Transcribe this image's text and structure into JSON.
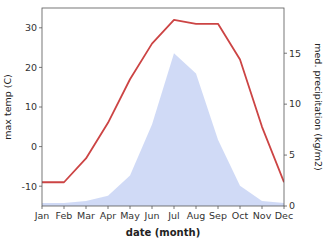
{
  "chart_data": {
    "type": "line",
    "xlabel": "date (month)",
    "ylabel": "max temp (C)",
    "y2label": "med. precipitation (kg/m2)",
    "categories": [
      "Jan",
      "Feb",
      "Mar",
      "Apr",
      "May",
      "Jun",
      "Jul",
      "Aug",
      "Sep",
      "Oct",
      "Nov",
      "Dec"
    ],
    "series": [
      {
        "type": "line",
        "color": "#cc4444",
        "values": [
          -9,
          -9,
          -3,
          6,
          17,
          26,
          32,
          31,
          31,
          22,
          5,
          -9
        ]
      },
      {
        "type": "area",
        "axis": "y2",
        "color": "#aabbee",
        "values": [
          0.3,
          0.3,
          0.5,
          1.0,
          3.0,
          8.0,
          15.0,
          13.0,
          6.5,
          2.0,
          0.5,
          0.3
        ]
      }
    ],
    "ylim": [
      -15,
      35
    ],
    "yticks": [
      -10,
      0,
      10,
      20,
      30
    ],
    "y2lim": [
      0,
      19.44
    ],
    "y2ticks": [
      0,
      5,
      10,
      15
    ],
    "grid": false
  }
}
